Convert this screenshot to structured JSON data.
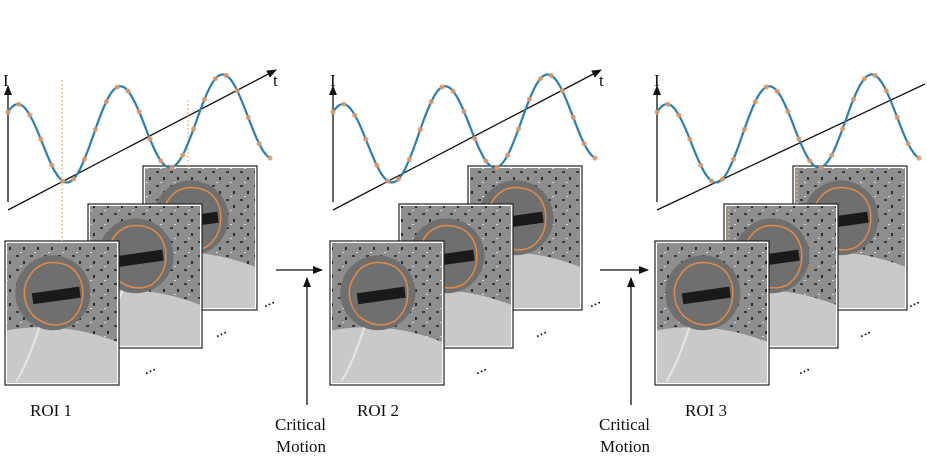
{
  "panels": [
    {
      "label": "ROI 1"
    },
    {
      "label": "ROI 2"
    },
    {
      "label": "ROI 3"
    }
  ],
  "axis": {
    "y": "I",
    "x": "t"
  },
  "transitions": [
    {
      "line1": "Critical",
      "line2": "Motion"
    },
    {
      "line1": "Critical",
      "line2": "Motion"
    }
  ],
  "ellipsis": "...",
  "colors": {
    "signal": "#2a7fb0",
    "sample": "#e39a6a",
    "contour": "#e28a4a",
    "guide": "#e7b86a",
    "frame_bg": "#9a9a9a",
    "redaction": "#1a1a1a"
  }
}
